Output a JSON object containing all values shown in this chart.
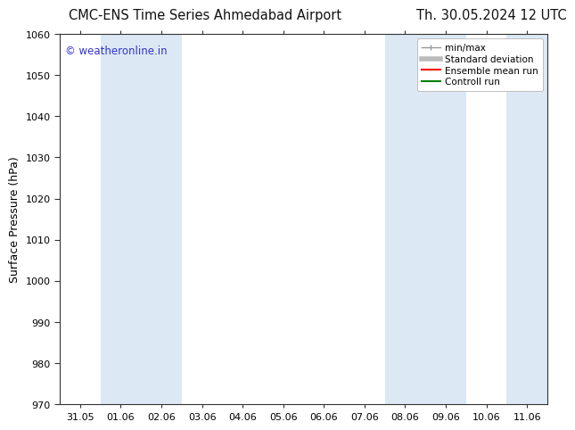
{
  "title_left": "CMC-ENS Time Series Ahmedabad Airport",
  "title_right": "Th. 30.05.2024 12 UTC",
  "ylabel": "Surface Pressure (hPa)",
  "ylim": [
    970,
    1060
  ],
  "yticks": [
    970,
    980,
    990,
    1000,
    1010,
    1020,
    1030,
    1040,
    1050,
    1060
  ],
  "x_labels": [
    "31.05",
    "01.06",
    "02.06",
    "03.06",
    "04.06",
    "05.06",
    "06.06",
    "07.06",
    "08.06",
    "09.06",
    "10.06",
    "11.06"
  ],
  "shaded_indices": [
    1,
    2,
    8,
    9,
    11
  ],
  "shade_color": "#dce9f5",
  "watermark": "© weatheronline.in",
  "watermark_color": "#3333cc",
  "legend_items": [
    {
      "label": "min/max",
      "color": "#999999",
      "lw": 1.0
    },
    {
      "label": "Standard deviation",
      "color": "#bbbbbb",
      "lw": 4
    },
    {
      "label": "Ensemble mean run",
      "color": "#ff0000",
      "lw": 1.5
    },
    {
      "label": "Controll run",
      "color": "#008000",
      "lw": 1.5
    }
  ],
  "bg_color": "#ffffff",
  "spine_color": "#333333",
  "title_fontsize": 10.5,
  "ylabel_fontsize": 9,
  "tick_fontsize": 8,
  "watermark_fontsize": 8.5,
  "legend_fontsize": 7.5
}
